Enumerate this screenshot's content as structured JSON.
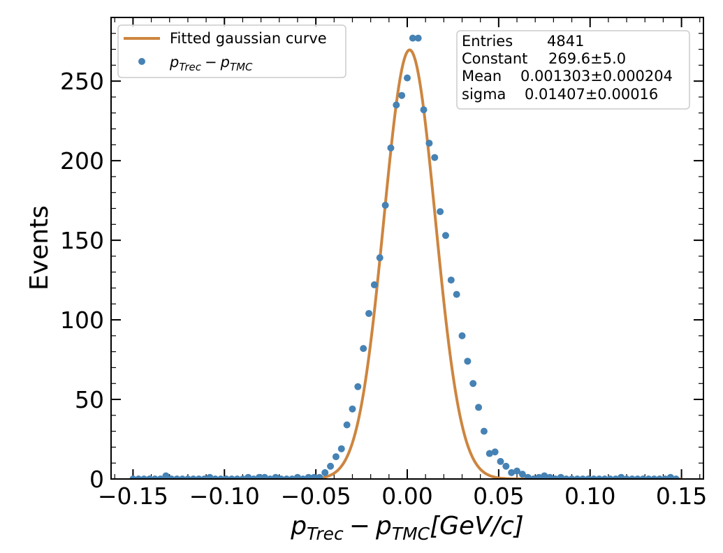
{
  "chart_data": {
    "type": "scatter",
    "xlabel": {
      "base1": "p",
      "sub1": "Trec",
      "minus": "−",
      "base2": "p",
      "sub2": "TMC",
      "unit": "[GeV/c]"
    },
    "ylabel": "Events",
    "xlim": [
      -0.162,
      0.162
    ],
    "ylim": [
      0,
      290
    ],
    "x_ticks": [
      -0.15,
      -0.1,
      -0.05,
      0.0,
      0.05,
      0.1,
      0.15
    ],
    "x_tick_labels": [
      "−0.15",
      "−0.10",
      "−0.05",
      "0.00",
      "0.05",
      "0.10",
      "0.15"
    ],
    "y_ticks": [
      0,
      50,
      100,
      150,
      200,
      250
    ],
    "y_tick_labels": [
      "0",
      "50",
      "100",
      "150",
      "200",
      "250"
    ],
    "legend": {
      "placement": "top-left",
      "fit_label": "Fitted gaussian curve",
      "points_label": {
        "base1": "p",
        "sub1": "Trec",
        "minus": "−",
        "base2": "p",
        "sub2": "TMC"
      }
    },
    "stats_box": {
      "placement": "top-right",
      "rows": [
        {
          "label": "Entries",
          "value": "4841"
        },
        {
          "label": "Constant",
          "value": "269.6±5.0"
        },
        {
          "label": "Mean",
          "value": "0.001303±0.000204"
        },
        {
          "label": "sigma",
          "value": "0.01407±0.00016"
        }
      ]
    },
    "fit": {
      "constant": 269.6,
      "mean": 0.001303,
      "sigma": 0.01407
    },
    "colors": {
      "points": "#4682b4",
      "fit": "#cd853f"
    },
    "series": [
      {
        "kind": "points",
        "x": [
          -0.15,
          -0.147,
          -0.144,
          -0.141,
          -0.138,
          -0.135,
          -0.132,
          -0.129,
          -0.126,
          -0.123,
          -0.12,
          -0.117,
          -0.114,
          -0.111,
          -0.108,
          -0.105,
          -0.102,
          -0.099,
          -0.096,
          -0.093,
          -0.09,
          -0.087,
          -0.084,
          -0.081,
          -0.078,
          -0.075,
          -0.072,
          -0.069,
          -0.066,
          -0.063,
          -0.06,
          -0.057,
          -0.054,
          -0.051,
          -0.048,
          -0.045,
          -0.042,
          -0.039,
          -0.036,
          -0.033,
          -0.03,
          -0.027,
          -0.024,
          -0.021,
          -0.018,
          -0.015,
          -0.012,
          -0.009,
          -0.006,
          -0.003,
          0.0,
          0.003,
          0.006,
          0.009,
          0.012,
          0.015,
          0.018,
          0.021,
          0.024,
          0.027,
          0.03,
          0.033,
          0.036,
          0.039,
          0.042,
          0.045,
          0.048,
          0.051,
          0.054,
          0.057,
          0.06,
          0.063,
          0.066,
          0.069,
          0.072,
          0.075,
          0.078,
          0.081,
          0.084,
          0.087,
          0.09,
          0.093,
          0.096,
          0.099,
          0.102,
          0.105,
          0.108,
          0.111,
          0.114,
          0.117,
          0.12,
          0.123,
          0.126,
          0.129,
          0.132,
          0.135,
          0.138,
          0.141,
          0.144,
          0.147
        ],
        "y": [
          0,
          0,
          0,
          0,
          0,
          0,
          2,
          0,
          0,
          0,
          0,
          0,
          0,
          0,
          1,
          0,
          0,
          0,
          0,
          0,
          0,
          1,
          0,
          1,
          1,
          0,
          1,
          0,
          0,
          0,
          1,
          0,
          1,
          1,
          1,
          4,
          8,
          14,
          19,
          34,
          44,
          58,
          82,
          104,
          122,
          139,
          172,
          208,
          235,
          241,
          252,
          277,
          277,
          232,
          211,
          202,
          168,
          153,
          125,
          116,
          90,
          74,
          60,
          45,
          30,
          16,
          17,
          11,
          8,
          4,
          5,
          3,
          1,
          0,
          1,
          2,
          1,
          0,
          1,
          0,
          0,
          0,
          0,
          0,
          0,
          0,
          0,
          0,
          0,
          1,
          0,
          0,
          0,
          0,
          0,
          0,
          0,
          0,
          1,
          0
        ]
      }
    ]
  }
}
